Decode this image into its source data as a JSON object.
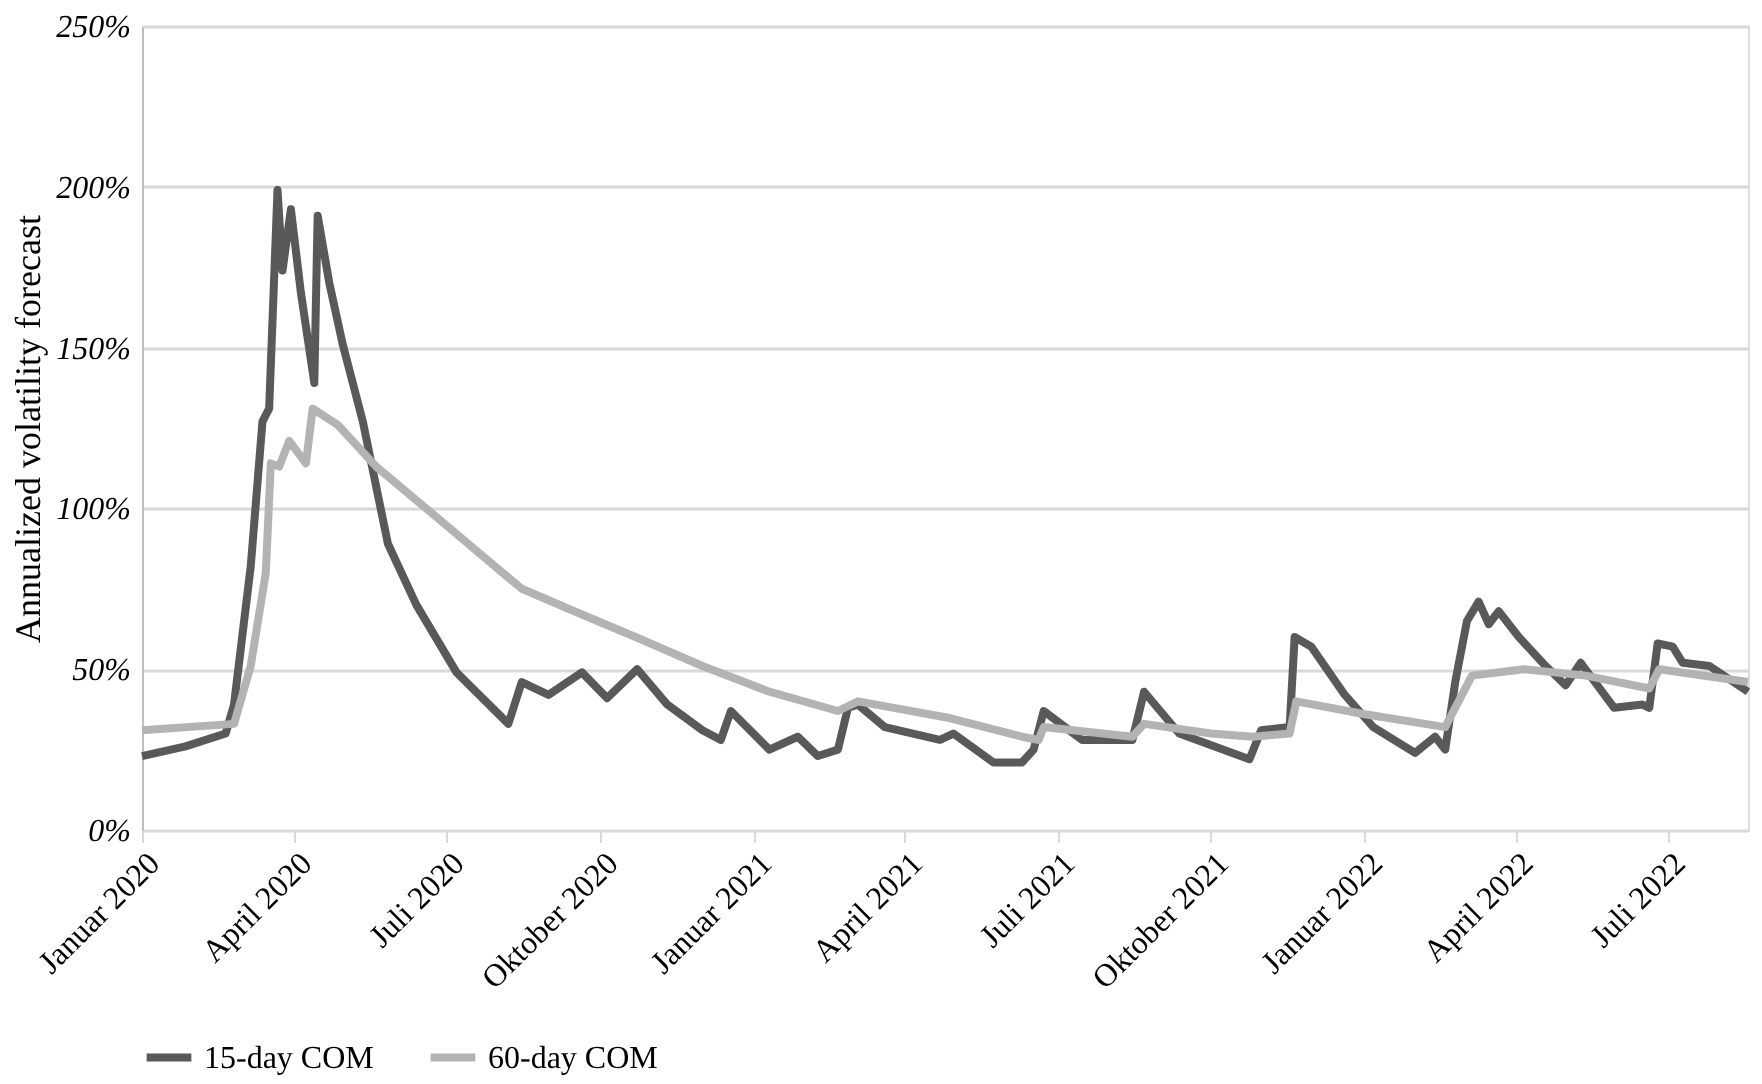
{
  "chart_data": {
    "type": "line",
    "ylabel": "Annualized volatility forecast",
    "xlim": [
      "2020-01-01",
      "2022-08-18"
    ],
    "xticks": [
      {
        "value": "2020-01-01",
        "label": "Januar 2020"
      },
      {
        "value": "2020-04-01",
        "label": "April 2020"
      },
      {
        "value": "2020-07-01",
        "label": "Juli 2020"
      },
      {
        "value": "2020-10-01",
        "label": "Oktober 2020"
      },
      {
        "value": "2021-01-01",
        "label": "Januar 2021"
      },
      {
        "value": "2021-04-01",
        "label": "April 2021"
      },
      {
        "value": "2021-07-01",
        "label": "Juli 2021"
      },
      {
        "value": "2021-10-01",
        "label": "Oktober 2021"
      },
      {
        "value": "2022-01-01",
        "label": "Januar 2022"
      },
      {
        "value": "2022-04-01",
        "label": "April 2022"
      },
      {
        "value": "2022-07-01",
        "label": "Juli 2022"
      }
    ],
    "ylim": [
      0,
      250
    ],
    "yticks": [
      {
        "value": 0,
        "label": "0%"
      },
      {
        "value": 50,
        "label": "50%"
      },
      {
        "value": 100,
        "label": "100%"
      },
      {
        "value": 150,
        "label": "150%"
      },
      {
        "value": 200,
        "label": "200%"
      },
      {
        "value": 250,
        "label": "250%"
      }
    ],
    "grid": "y",
    "legend": "bottom",
    "marker": "none",
    "line_style": "solid",
    "series": [
      {
        "name": "15-day COM",
        "color": "#595959",
        "x": [
          "2020-01-01",
          "2020-01-27",
          "2020-02-20",
          "2020-02-25",
          "2020-03-06",
          "2020-03-13",
          "2020-03-17",
          "2020-03-22",
          "2020-03-25",
          "2020-03-30",
          "2020-04-05",
          "2020-04-13",
          "2020-04-15",
          "2020-04-22",
          "2020-04-30",
          "2020-05-12",
          "2020-05-27",
          "2020-06-13",
          "2020-07-07",
          "2020-08-07",
          "2020-08-15",
          "2020-08-31",
          "2020-09-20",
          "2020-10-05",
          "2020-10-23",
          "2020-11-10",
          "2020-12-01",
          "2020-12-12",
          "2020-12-18",
          "2021-01-10",
          "2021-01-27",
          "2021-02-08",
          "2021-02-20",
          "2021-02-26",
          "2021-03-04",
          "2021-03-20",
          "2021-04-22",
          "2021-04-30",
          "2021-05-24",
          "2021-06-10",
          "2021-06-17",
          "2021-06-23",
          "2021-07-16",
          "2021-08-15",
          "2021-08-22",
          "2021-09-12",
          "2021-10-24",
          "2021-10-31",
          "2021-11-17",
          "2021-11-20",
          "2021-11-30",
          "2021-12-20",
          "2022-01-06",
          "2022-01-31",
          "2022-02-12",
          "2022-02-18",
          "2022-02-24",
          "2022-03-03",
          "2022-03-10",
          "2022-03-16",
          "2022-03-22",
          "2022-04-03",
          "2022-04-19",
          "2022-05-01",
          "2022-05-10",
          "2022-05-30",
          "2022-06-16",
          "2022-06-20",
          "2022-06-25",
          "2022-07-04",
          "2022-07-10",
          "2022-07-26",
          "2022-08-18"
        ],
        "values": [
          23,
          26,
          30,
          39,
          82,
          127,
          131,
          199,
          174,
          193,
          167,
          139,
          191,
          170,
          151,
          127,
          89,
          70,
          49,
          33,
          46,
          42,
          49,
          41,
          50,
          39,
          31,
          28,
          37,
          25,
          29,
          23,
          25,
          38,
          39,
          32,
          28,
          30,
          21,
          21,
          25,
          37,
          28,
          28,
          43,
          30,
          22,
          31,
          32,
          60,
          57,
          42,
          32,
          24,
          29,
          25,
          46,
          65,
          71,
          64,
          68,
          60,
          51,
          45,
          52,
          38,
          39,
          38,
          58,
          57,
          52,
          51,
          43
        ]
      },
      {
        "name": "60-day COM",
        "color": "#b3b3b3",
        "x": [
          "2020-01-01",
          "2020-02-25",
          "2020-03-06",
          "2020-03-15",
          "2020-03-18",
          "2020-03-23",
          "2020-03-29",
          "2020-04-08",
          "2020-04-12",
          "2020-04-27",
          "2020-05-20",
          "2020-06-28",
          "2020-08-15",
          "2020-09-20",
          "2020-10-22",
          "2020-12-01",
          "2021-01-10",
          "2021-02-20",
          "2021-03-04",
          "2021-04-26",
          "2021-06-10",
          "2021-06-20",
          "2021-06-23",
          "2021-08-15",
          "2021-08-22",
          "2021-10-01",
          "2021-10-26",
          "2021-11-17",
          "2021-11-21",
          "2022-01-01",
          "2022-02-18",
          "2022-02-28",
          "2022-03-06",
          "2022-04-06",
          "2022-05-13",
          "2022-06-20",
          "2022-06-26",
          "2022-08-18"
        ],
        "values": [
          31,
          33,
          51,
          80,
          114,
          113,
          121,
          114,
          131,
          126,
          113,
          96,
          75,
          67,
          60,
          51,
          43,
          37,
          40,
          35,
          29,
          28,
          32,
          29,
          33,
          30,
          29,
          30,
          40,
          36,
          32,
          42,
          48,
          50,
          48,
          44,
          50,
          46
        ]
      }
    ]
  }
}
